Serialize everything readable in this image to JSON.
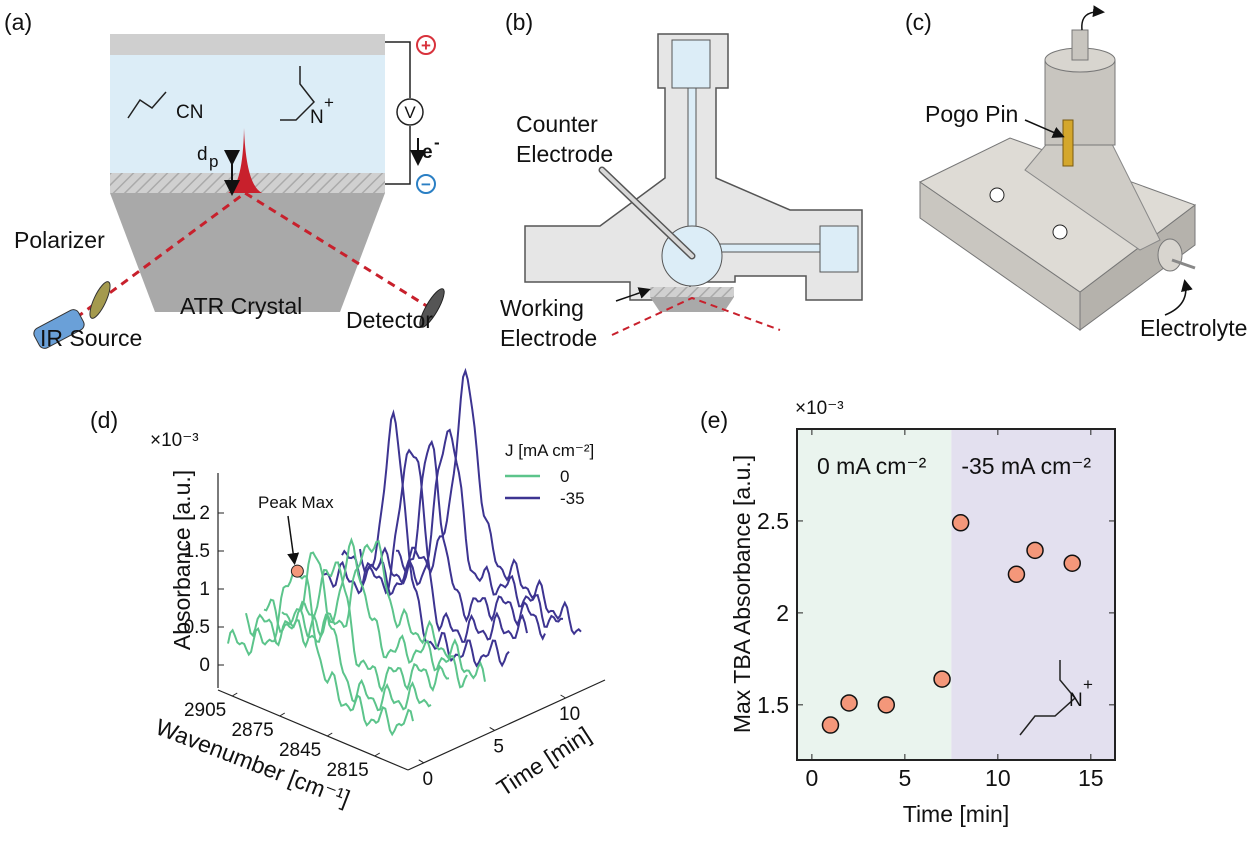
{
  "panels": {
    "a": {
      "label": "(a)",
      "cn": "CN",
      "dp": "d",
      "dp_sub": "p",
      "cation_n": "N",
      "cation_charge": "+",
      "voltmeter": "V",
      "electron": "e",
      "electron_charge": "-",
      "plus_terminal": "+",
      "minus_terminal": "−",
      "polarizer": "Polarizer",
      "ir_source": "IR Source",
      "crystal": "ATR Crystal",
      "detector": "Detector"
    },
    "b": {
      "label": "(b)",
      "counter_electrode": [
        "Counter",
        "Electrode"
      ],
      "working_electrode": [
        "Working",
        "Electrode"
      ]
    },
    "c": {
      "label": "(c)",
      "pogo_pin": "Pogo Pin",
      "electrolyte": "Electrolyte"
    },
    "d": {
      "label": "(d)",
      "exponent": "×10⁻³",
      "z_label": "Absorbance [a.u.]",
      "zticks": [
        0,
        0.5,
        1,
        1.5,
        2
      ],
      "x_label": "Wavenumber [cm⁻¹]",
      "xticks": [
        2905,
        2875,
        2845,
        2815
      ],
      "y_label": "Time [min]",
      "yticks": [
        0,
        5,
        10
      ],
      "annotation": "Peak Max",
      "legend_title": "J [mA cm⁻²]",
      "legend": [
        {
          "name": "0",
          "color": "#5cc48b"
        },
        {
          "name": "-35",
          "color": "#3d3491"
        }
      ]
    }
  },
  "chart_data": {
    "type": "scatter",
    "panel_label": "(e)",
    "exponent": "×10⁻³",
    "x": [
      1,
      2,
      4,
      7,
      8,
      11,
      12,
      14
    ],
    "values": [
      1.39,
      1.51,
      1.5,
      1.64,
      2.49,
      2.21,
      2.34,
      2.27
    ],
    "xlim": [
      -0.8,
      16.3
    ],
    "ylim": [
      1.2,
      3
    ],
    "xticks": [
      0,
      5,
      10,
      15
    ],
    "yticks": [
      1.5,
      2,
      2.5
    ],
    "x_label": "Time [min]",
    "y_label": "Max TBA Absorbance [a.u.]",
    "color": "#f4977a",
    "region_boundary": 7.5,
    "regions": [
      {
        "label": "0 mA cm⁻²",
        "color": "#eaf4ee"
      },
      {
        "label": "-35 mA cm⁻²",
        "color": "#e3e0ef"
      }
    ],
    "cation_n": "N",
    "cation_charge": "+"
  }
}
